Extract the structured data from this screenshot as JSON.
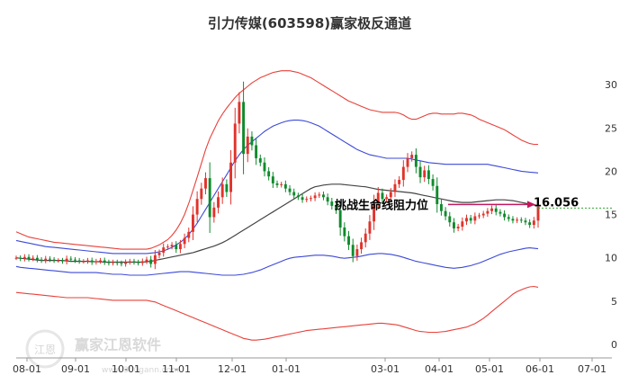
{
  "chart_data": {
    "type": "candlestick",
    "title": "引力传媒(603598)赢家极反通道",
    "x_ticks": [
      "08-01",
      "09-01",
      "10-01",
      "11-01",
      "12-01",
      "01-01",
      "03-01",
      "04-01",
      "05-01",
      "06-01",
      "07-01"
    ],
    "y_ticks": [
      "0",
      "5",
      "10",
      "15",
      "20",
      "25",
      "30"
    ],
    "ylim": [
      0,
      32
    ],
    "annotation": "挑战生命线阻力位",
    "resistance_value": "16.056",
    "watermark": {
      "brand": "赢家江恩软件",
      "logo_text": "江恩",
      "url": "www.360gann.com"
    },
    "colors": {
      "up": "#e0332b",
      "down": "#0f8a2c",
      "upper_band": "#e8413b",
      "mid_band": "#3c49d8",
      "lifeline": "#444444",
      "level_line": "#2fa52f",
      "arrow": "#c2185b"
    },
    "series": {
      "close": [
        10.0,
        9.9,
        10.1,
        9.9,
        10.0,
        9.8,
        9.7,
        9.9,
        9.8,
        9.7,
        9.7,
        9.6,
        9.9,
        9.8,
        9.7,
        9.6,
        9.6,
        9.7,
        9.5,
        9.6,
        9.7,
        9.5,
        9.4,
        9.5,
        9.4,
        9.3,
        9.5,
        9.6,
        9.5,
        9.4,
        9.6,
        9.8,
        9.3,
        10.3,
        10.6,
        11.2,
        11.3,
        11.5,
        11.0,
        11.6,
        12.3,
        13.0,
        15.0,
        16.8,
        18.0,
        19.2,
        14.7,
        15.8,
        17.0,
        18.5,
        17.6,
        21.0,
        25.5,
        28.0,
        22.0,
        24.0,
        23.0,
        21.5,
        21.0,
        20.0,
        19.4,
        18.6,
        18.4,
        18.5,
        18.0,
        17.6,
        17.2,
        17.0,
        16.7,
        16.8,
        16.9,
        17.2,
        17.3,
        17.0,
        16.5,
        16.0,
        15.5,
        13.5,
        12.5,
        11.5,
        10.2,
        11.0,
        11.8,
        12.8,
        14.2,
        16.3,
        17.5,
        16.8,
        17.0,
        17.6,
        18.5,
        19.0,
        20.5,
        21.5,
        21.9,
        20.5,
        19.3,
        20.1,
        19.1,
        18.3,
        16.2,
        15.4,
        14.8,
        14.1,
        13.4,
        13.6,
        14.2,
        14.6,
        14.3,
        14.8,
        14.9,
        15.1,
        15.4,
        15.7,
        15.3,
        15.1,
        14.7,
        14.5,
        14.3,
        14.4,
        14.3,
        14.1,
        13.8,
        14.3,
        15.9
      ],
      "upper": [
        13.0,
        12.8,
        12.6,
        12.4,
        12.3,
        12.2,
        12.1,
        12.0,
        11.9,
        11.8,
        11.75,
        11.7,
        11.65,
        11.6,
        11.55,
        11.5,
        11.45,
        11.4,
        11.35,
        11.3,
        11.25,
        11.2,
        11.15,
        11.1,
        11.05,
        11.0,
        11.0,
        11.0,
        11.0,
        11.0,
        11.0,
        11.0,
        11.1,
        11.3,
        11.5,
        11.8,
        12.1,
        12.6,
        13.2,
        14.0,
        15.0,
        16.3,
        17.8,
        19.3,
        20.9,
        22.5,
        23.8,
        24.8,
        25.8,
        26.6,
        27.3,
        27.9,
        28.5,
        29.0,
        29.4,
        29.8,
        30.2,
        30.5,
        30.8,
        31.0,
        31.2,
        31.4,
        31.5,
        31.6,
        31.6,
        31.6,
        31.5,
        31.4,
        31.2,
        31.0,
        30.8,
        30.5,
        30.2,
        29.9,
        29.6,
        29.3,
        29.0,
        28.7,
        28.4,
        28.1,
        27.9,
        27.7,
        27.5,
        27.3,
        27.1,
        27.0,
        26.9,
        26.8,
        26.8,
        26.8,
        26.8,
        26.7,
        26.5,
        26.2,
        26.0,
        26.0,
        26.2,
        26.4,
        26.6,
        26.7,
        26.7,
        26.6,
        26.6,
        26.6,
        26.6,
        26.7,
        26.7,
        26.6,
        26.5,
        26.3,
        26.0,
        25.8,
        25.6,
        25.4,
        25.2,
        25.0,
        24.8,
        24.5,
        24.2,
        23.9,
        23.6,
        23.4,
        23.2,
        23.1,
        23.1
      ],
      "mid": [
        12.0,
        11.9,
        11.8,
        11.7,
        11.6,
        11.5,
        11.4,
        11.3,
        11.25,
        11.2,
        11.15,
        11.1,
        11.05,
        11.0,
        10.95,
        10.9,
        10.85,
        10.8,
        10.75,
        10.7,
        10.65,
        10.6,
        10.55,
        10.5,
        10.5,
        10.5,
        10.5,
        10.5,
        10.5,
        10.5,
        10.5,
        10.5,
        10.55,
        10.6,
        10.7,
        10.8,
        11.0,
        11.2,
        11.5,
        11.8,
        12.2,
        12.7,
        13.3,
        14.0,
        14.8,
        15.6,
        16.4,
        17.2,
        18.0,
        18.8,
        19.6,
        20.4,
        21.2,
        21.9,
        22.5,
        23.0,
        23.4,
        23.8,
        24.2,
        24.6,
        24.9,
        25.2,
        25.4,
        25.6,
        25.75,
        25.85,
        25.9,
        25.9,
        25.85,
        25.75,
        25.6,
        25.4,
        25.2,
        24.9,
        24.6,
        24.3,
        24.0,
        23.7,
        23.4,
        23.1,
        22.8,
        22.5,
        22.3,
        22.1,
        21.9,
        21.8,
        21.7,
        21.6,
        21.5,
        21.5,
        21.5,
        21.5,
        21.5,
        21.5,
        21.4,
        21.3,
        21.2,
        21.1,
        21.0,
        20.95,
        20.9,
        20.85,
        20.8,
        20.8,
        20.8,
        20.8,
        20.8,
        20.8,
        20.8,
        20.8,
        20.8,
        20.8,
        20.8,
        20.7,
        20.6,
        20.5,
        20.4,
        20.3,
        20.2,
        20.1,
        20.0,
        19.95,
        19.9,
        19.85,
        19.8
      ],
      "life": [
        10.0,
        9.95,
        9.9,
        9.85,
        9.8,
        9.75,
        9.7,
        9.7,
        9.7,
        9.7,
        9.7,
        9.7,
        9.65,
        9.6,
        9.6,
        9.6,
        9.6,
        9.6,
        9.55,
        9.55,
        9.55,
        9.5,
        9.5,
        9.5,
        9.5,
        9.5,
        9.5,
        9.5,
        9.5,
        9.5,
        9.5,
        9.55,
        9.6,
        9.7,
        9.8,
        9.9,
        10.0,
        10.1,
        10.2,
        10.3,
        10.4,
        10.5,
        10.6,
        10.75,
        10.9,
        11.05,
        11.2,
        11.35,
        11.55,
        11.75,
        12.0,
        12.3,
        12.6,
        12.9,
        13.2,
        13.5,
        13.8,
        14.1,
        14.4,
        14.7,
        15.0,
        15.3,
        15.6,
        15.9,
        16.2,
        16.5,
        16.8,
        17.1,
        17.4,
        17.7,
        18.0,
        18.2,
        18.3,
        18.4,
        18.45,
        18.5,
        18.5,
        18.5,
        18.45,
        18.4,
        18.35,
        18.3,
        18.25,
        18.2,
        18.1,
        18.0,
        17.9,
        17.85,
        17.8,
        17.75,
        17.7,
        17.65,
        17.6,
        17.55,
        17.5,
        17.4,
        17.3,
        17.2,
        17.1,
        17.0,
        16.9,
        16.8,
        16.7,
        16.6,
        16.5,
        16.45,
        16.4,
        16.4,
        16.4,
        16.45,
        16.5,
        16.55,
        16.6,
        16.65,
        16.7,
        16.7,
        16.7,
        16.65,
        16.6,
        16.5,
        16.4,
        16.3,
        16.2,
        16.1,
        16.056
      ],
      "lower_mid": [
        9.0,
        8.9,
        8.85,
        8.8,
        8.75,
        8.7,
        8.65,
        8.6,
        8.55,
        8.5,
        8.45,
        8.4,
        8.35,
        8.3,
        8.3,
        8.3,
        8.3,
        8.3,
        8.3,
        8.3,
        8.25,
        8.2,
        8.15,
        8.1,
        8.1,
        8.1,
        8.05,
        8.0,
        8.0,
        8.0,
        8.0,
        8.0,
        8.05,
        8.1,
        8.15,
        8.2,
        8.25,
        8.3,
        8.35,
        8.4,
        8.4,
        8.4,
        8.35,
        8.3,
        8.25,
        8.2,
        8.15,
        8.1,
        8.05,
        8.0,
        8.0,
        8.0,
        8.0,
        8.05,
        8.1,
        8.2,
        8.3,
        8.45,
        8.6,
        8.8,
        9.0,
        9.2,
        9.4,
        9.6,
        9.8,
        9.95,
        10.05,
        10.1,
        10.15,
        10.2,
        10.25,
        10.3,
        10.3,
        10.3,
        10.25,
        10.2,
        10.1,
        10.0,
        9.95,
        10.0,
        10.05,
        10.1,
        10.2,
        10.3,
        10.4,
        10.45,
        10.5,
        10.5,
        10.45,
        10.4,
        10.3,
        10.2,
        10.05,
        9.9,
        9.75,
        9.6,
        9.5,
        9.4,
        9.3,
        9.2,
        9.1,
        9.0,
        8.9,
        8.85,
        8.8,
        8.85,
        8.9,
        9.0,
        9.1,
        9.25,
        9.4,
        9.6,
        9.8,
        10.0,
        10.2,
        10.4,
        10.55,
        10.7,
        10.8,
        10.9,
        11.0,
        11.1,
        11.15,
        11.1,
        11.05
      ],
      "lower": [
        6.0,
        5.95,
        5.9,
        5.85,
        5.8,
        5.75,
        5.7,
        5.65,
        5.6,
        5.55,
        5.5,
        5.45,
        5.4,
        5.4,
        5.4,
        5.4,
        5.4,
        5.4,
        5.35,
        5.3,
        5.25,
        5.2,
        5.15,
        5.1,
        5.1,
        5.1,
        5.1,
        5.1,
        5.1,
        5.1,
        5.1,
        5.1,
        5.0,
        4.9,
        4.7,
        4.5,
        4.3,
        4.1,
        3.9,
        3.7,
        3.5,
        3.3,
        3.1,
        2.9,
        2.7,
        2.5,
        2.3,
        2.1,
        1.9,
        1.7,
        1.5,
        1.3,
        1.1,
        0.9,
        0.7,
        0.6,
        0.5,
        0.5,
        0.55,
        0.6,
        0.7,
        0.8,
        0.9,
        1.0,
        1.1,
        1.2,
        1.3,
        1.4,
        1.5,
        1.6,
        1.65,
        1.7,
        1.75,
        1.8,
        1.85,
        1.9,
        1.95,
        2.0,
        2.05,
        2.1,
        2.15,
        2.2,
        2.25,
        2.3,
        2.35,
        2.4,
        2.45,
        2.45,
        2.4,
        2.35,
        2.3,
        2.2,
        2.05,
        1.9,
        1.75,
        1.6,
        1.5,
        1.45,
        1.4,
        1.4,
        1.4,
        1.45,
        1.5,
        1.6,
        1.7,
        1.8,
        1.9,
        2.0,
        2.2,
        2.4,
        2.7,
        3.0,
        3.4,
        3.8,
        4.2,
        4.6,
        5.0,
        5.4,
        5.8,
        6.1,
        6.3,
        6.5,
        6.65,
        6.7,
        6.6
      ]
    }
  }
}
